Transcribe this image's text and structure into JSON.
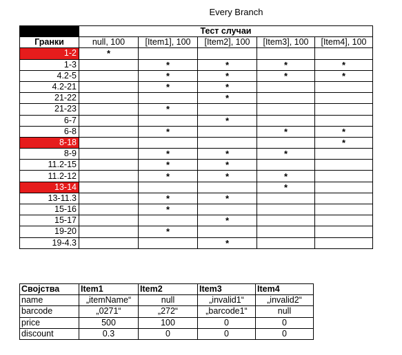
{
  "title": "Every Branch",
  "coverage": {
    "group_header": "Тест случаи",
    "branch_header": "Гранки",
    "test_cases": [
      "null, 100",
      "[Item1], 100",
      "[Item2], 100",
      "[Item3], 100",
      "[Item4], 100"
    ],
    "mark_symbol": "*",
    "highlight_color": "#e61c1c",
    "rows": [
      {
        "branch": "1-2",
        "highlight": true,
        "marks": [
          1,
          0,
          0,
          0,
          0
        ]
      },
      {
        "branch": "1-3",
        "highlight": false,
        "marks": [
          0,
          1,
          1,
          1,
          1
        ]
      },
      {
        "branch": "4.2-5",
        "highlight": false,
        "marks": [
          0,
          1,
          1,
          1,
          1
        ]
      },
      {
        "branch": "4.2-21",
        "highlight": false,
        "marks": [
          0,
          1,
          1,
          0,
          0
        ]
      },
      {
        "branch": "21-22",
        "highlight": false,
        "marks": [
          0,
          0,
          1,
          0,
          0
        ]
      },
      {
        "branch": "21-23",
        "highlight": false,
        "marks": [
          0,
          1,
          0,
          0,
          0
        ]
      },
      {
        "branch": "6-7",
        "highlight": false,
        "marks": [
          0,
          0,
          1,
          0,
          0
        ]
      },
      {
        "branch": "6-8",
        "highlight": false,
        "marks": [
          0,
          1,
          0,
          1,
          1
        ]
      },
      {
        "branch": "8-18",
        "highlight": true,
        "marks": [
          0,
          0,
          0,
          0,
          1
        ]
      },
      {
        "branch": "8-9",
        "highlight": false,
        "marks": [
          0,
          1,
          1,
          1,
          0
        ]
      },
      {
        "branch": "11.2-15",
        "highlight": false,
        "marks": [
          0,
          1,
          1,
          0,
          0
        ]
      },
      {
        "branch": "11.2-12",
        "highlight": false,
        "marks": [
          0,
          1,
          1,
          1,
          0
        ]
      },
      {
        "branch": "13-14",
        "highlight": true,
        "marks": [
          0,
          0,
          0,
          1,
          0
        ]
      },
      {
        "branch": "13-11.3",
        "highlight": false,
        "marks": [
          0,
          1,
          1,
          0,
          0
        ]
      },
      {
        "branch": "15-16",
        "highlight": false,
        "marks": [
          0,
          1,
          0,
          0,
          0
        ]
      },
      {
        "branch": "15-17",
        "highlight": false,
        "marks": [
          0,
          0,
          1,
          0,
          0
        ]
      },
      {
        "branch": "19-20",
        "highlight": false,
        "marks": [
          0,
          1,
          0,
          0,
          0
        ]
      },
      {
        "branch": "19-4.3",
        "highlight": false,
        "marks": [
          0,
          0,
          1,
          0,
          0
        ]
      }
    ]
  },
  "properties": {
    "header": [
      "Својства",
      "Item1",
      "Item2",
      "Item3",
      "Item4"
    ],
    "rows": [
      {
        "label": "name",
        "values": [
          "„itemName“",
          "null",
          "„invalid1“",
          "„invalid2“"
        ]
      },
      {
        "label": "barcode",
        "values": [
          "„0271“",
          "„272“",
          "„barcode1“",
          "null"
        ]
      },
      {
        "label": "price",
        "values": [
          "500",
          "100",
          "0",
          "0"
        ]
      },
      {
        "label": "discount",
        "values": [
          "0.3",
          "0",
          "0",
          "0"
        ]
      }
    ]
  }
}
